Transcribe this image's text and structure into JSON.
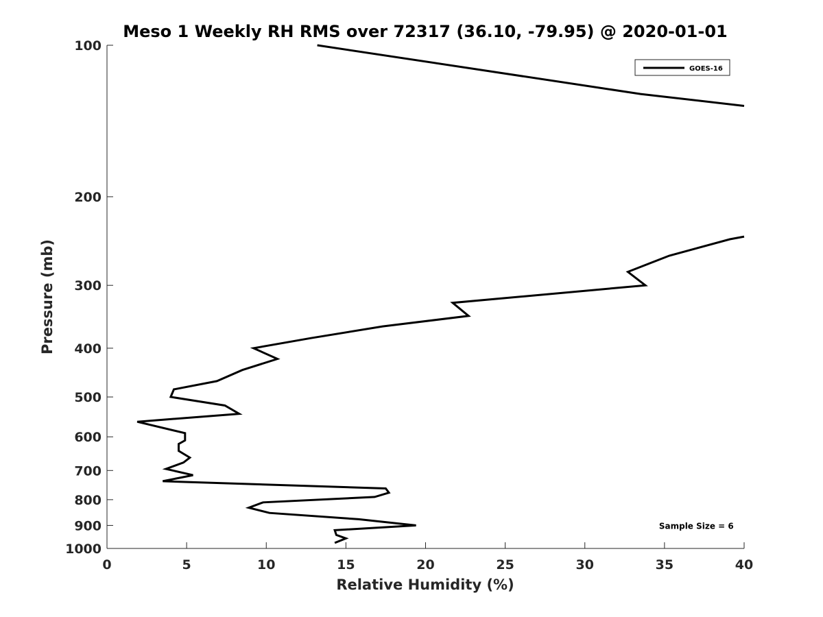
{
  "chart_data": {
    "type": "line",
    "title": "Meso 1 Weekly RH RMS over 72317 (36.10, -79.95) @ 2020-01-01",
    "xlabel": "Relative Humidity (%)",
    "ylabel": "Pressure (mb)",
    "xlim": [
      0,
      40
    ],
    "ylim": [
      100,
      1000
    ],
    "y_scale": "log",
    "y_reversed": true,
    "x_ticks": [
      0,
      5,
      10,
      15,
      20,
      25,
      30,
      35,
      40
    ],
    "y_ticks": [
      100,
      200,
      300,
      400,
      500,
      600,
      700,
      800,
      900,
      1000
    ],
    "grid": false,
    "legend_position": "top-right",
    "series": [
      {
        "name": "GOES-16",
        "color": "#000000",
        "segments": [
          [
            {
              "x": 13.2,
              "y": 100
            },
            {
              "x": 33.5,
              "y": 125
            },
            {
              "x": 40.0,
              "y": 132
            }
          ],
          [
            {
              "x": 40.0,
              "y": 240
            },
            {
              "x": 39.1,
              "y": 243
            },
            {
              "x": 35.3,
              "y": 262
            },
            {
              "x": 32.7,
              "y": 282
            },
            {
              "x": 33.8,
              "y": 300
            },
            {
              "x": 21.7,
              "y": 325
            },
            {
              "x": 22.7,
              "y": 345
            },
            {
              "x": 17.3,
              "y": 362
            },
            {
              "x": 12.8,
              "y": 382
            },
            {
              "x": 9.2,
              "y": 400
            },
            {
              "x": 10.7,
              "y": 420
            },
            {
              "x": 8.5,
              "y": 442
            },
            {
              "x": 6.9,
              "y": 465
            },
            {
              "x": 4.2,
              "y": 483
            },
            {
              "x": 4.0,
              "y": 500
            },
            {
              "x": 7.4,
              "y": 520
            },
            {
              "x": 8.3,
              "y": 540
            },
            {
              "x": 1.9,
              "y": 560
            },
            {
              "x": 4.9,
              "y": 590
            },
            {
              "x": 4.9,
              "y": 610
            },
            {
              "x": 4.5,
              "y": 620
            },
            {
              "x": 4.5,
              "y": 640
            },
            {
              "x": 5.2,
              "y": 660
            },
            {
              "x": 4.8,
              "y": 675
            },
            {
              "x": 3.7,
              "y": 695
            },
            {
              "x": 5.4,
              "y": 715
            },
            {
              "x": 3.5,
              "y": 735
            },
            {
              "x": 17.5,
              "y": 760
            },
            {
              "x": 17.7,
              "y": 775
            },
            {
              "x": 16.8,
              "y": 790
            },
            {
              "x": 9.8,
              "y": 810
            },
            {
              "x": 8.9,
              "y": 830
            },
            {
              "x": 10.2,
              "y": 850
            },
            {
              "x": 15.8,
              "y": 875
            },
            {
              "x": 19.4,
              "y": 900
            },
            {
              "x": 14.3,
              "y": 920
            },
            {
              "x": 14.4,
              "y": 940
            },
            {
              "x": 15.0,
              "y": 955
            },
            {
              "x": 14.3,
              "y": 975
            }
          ]
        ]
      }
    ],
    "annotations": [
      {
        "text": "Sample Size = 6",
        "x": 37,
        "y": 900
      }
    ]
  }
}
